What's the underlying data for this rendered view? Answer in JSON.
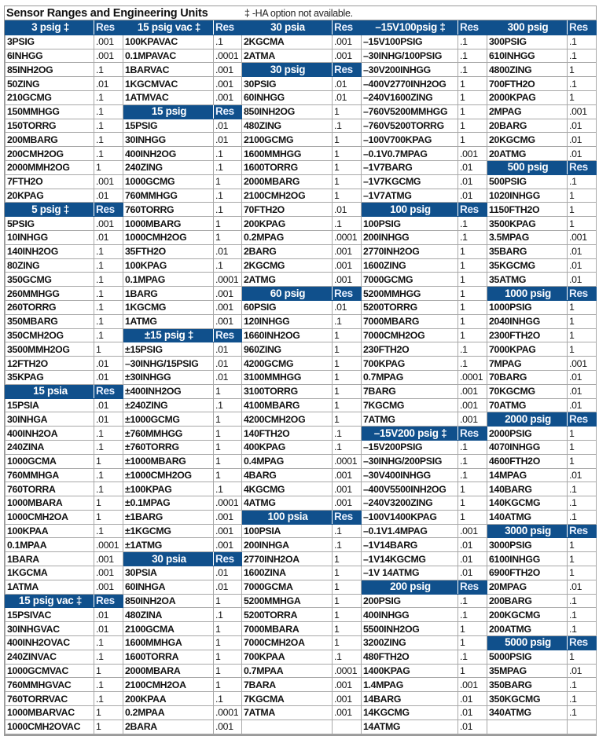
{
  "title": "Sensor Ranges and Engineering Units",
  "note": "‡ -HA option not available.",
  "colors": {
    "header_bg": "#10508c",
    "header_text": "#ffffff"
  },
  "columns": [
    [
      {
        "h": "3 psig ‡",
        "r": "Res"
      },
      [
        "3PSIG",
        ".001"
      ],
      [
        "6INHGG",
        ".001"
      ],
      [
        "85INH2OG",
        ".1"
      ],
      [
        "50ZING",
        ".01"
      ],
      [
        "210GCMG",
        ".1"
      ],
      [
        "150MMHGG",
        ".1"
      ],
      [
        "150TORRG",
        ".1"
      ],
      [
        "200MBARG",
        ".1"
      ],
      [
        "200CMH2OG",
        ".1"
      ],
      [
        "2000MMH2OG",
        "1"
      ],
      [
        "7FTH2O",
        ".001"
      ],
      [
        "20KPAG",
        ".01"
      ],
      {
        "h": "5 psig ‡",
        "r": "Res"
      },
      [
        "5PSIG",
        ".001"
      ],
      [
        "10INHGG",
        ".01"
      ],
      [
        "140INH2OG",
        ".1"
      ],
      [
        "80ZING",
        ".1"
      ],
      [
        "350GCMG",
        ".1"
      ],
      [
        "260MMHGG",
        ".1"
      ],
      [
        "260TORRG",
        ".1"
      ],
      [
        "350MBARG",
        ".1"
      ],
      [
        "350CMH2OG",
        ".1"
      ],
      [
        "3500MMH2OG",
        "1"
      ],
      [
        "12FTH2O",
        ".01"
      ],
      [
        "35KPAG",
        ".01"
      ],
      {
        "h": "15 psia",
        "r": "Res"
      },
      [
        "15PSIA",
        ".01"
      ],
      [
        "30INHGA",
        ".01"
      ],
      [
        "400INH2OA",
        ".1"
      ],
      [
        "240ZINA",
        ".1"
      ],
      [
        "1000GCMA",
        "1"
      ],
      [
        "760MMHGA",
        ".1"
      ],
      [
        "760TORRA",
        ".1"
      ],
      [
        "1000MBARA",
        "1"
      ],
      [
        "1000CMH2OA",
        "1"
      ],
      [
        "100KPAA",
        ".1"
      ],
      [
        "0.1MPAA",
        ".0001"
      ],
      [
        "1BARA",
        ".001"
      ],
      [
        "1KGCMA",
        ".001"
      ],
      [
        "1ATMA",
        ".001"
      ],
      {
        "h": "15 psig vac ‡",
        "r": "Res"
      },
      [
        "15PSIVAC",
        ".01"
      ],
      [
        "30INHGVAC",
        ".01"
      ],
      [
        "400INH2OVAC",
        ".1"
      ],
      [
        "240ZINVAC",
        ".1"
      ],
      [
        "1000GCMVAC",
        "1"
      ],
      [
        "760MMHGVAC",
        ".1"
      ],
      [
        "760TORRVAC",
        ".1"
      ],
      [
        "1000MBARVAC",
        "1"
      ],
      [
        "1000CMH2OVAC",
        "1"
      ]
    ],
    [
      {
        "h": "15 psig vac ‡",
        "r": "Res"
      },
      [
        "100KPAVAC",
        ".1"
      ],
      [
        "0.1MPAVAC",
        ".0001"
      ],
      [
        "1BARVAC",
        ".001"
      ],
      [
        "1KGCMVAC",
        ".001"
      ],
      [
        "1ATMVAC",
        ".001"
      ],
      {
        "h": "15 psig",
        "r": "Res"
      },
      [
        "15PSIG",
        ".01"
      ],
      [
        "30INHGG",
        ".01"
      ],
      [
        "400INH2OG",
        ".1"
      ],
      [
        "240ZING",
        ".1"
      ],
      [
        "1000GCMG",
        "1"
      ],
      [
        "760MMHGG",
        ".1"
      ],
      [
        "760TORRG",
        ".1"
      ],
      [
        "1000MBARG",
        "1"
      ],
      [
        "1000CMH2OG",
        "1"
      ],
      [
        "35FTH2O",
        ".01"
      ],
      [
        "100KPAG",
        ".1"
      ],
      [
        "0.1MPAG",
        ".0001"
      ],
      [
        "1BARG",
        ".001"
      ],
      [
        "1KGCMG",
        ".001"
      ],
      [
        "1ATMG",
        ".001"
      ],
      {
        "h": "±15 psig ‡",
        "r": "Res"
      },
      [
        "±15PSIG",
        ".01"
      ],
      [
        "–30INHG/15PSIG",
        ".01"
      ],
      [
        "±30INHGG",
        ".01"
      ],
      [
        "±400INH2OG",
        "1"
      ],
      [
        "±240ZING",
        ".1"
      ],
      [
        "±1000GCMG",
        "1"
      ],
      [
        "±760MMHGG",
        "1"
      ],
      [
        "±760TORRG",
        "1"
      ],
      [
        "±1000MBARG",
        "1"
      ],
      [
        "±1000CMH2OG",
        "1"
      ],
      [
        "±100KPAG",
        ".1"
      ],
      [
        "±0.1MPAG",
        ".0001"
      ],
      [
        "±1BARG",
        ".001"
      ],
      [
        "±1KGCMG",
        ".001"
      ],
      [
        "±1ATMG",
        ".001"
      ],
      {
        "h": "30 psia",
        "r": "Res"
      },
      [
        "30PSIA",
        ".01"
      ],
      [
        "60INHGA",
        ".01"
      ],
      [
        "850INH2OA",
        "1"
      ],
      [
        "480ZINA",
        ".1"
      ],
      [
        "2100GCMA",
        "1"
      ],
      [
        "1600MMHGA",
        "1"
      ],
      [
        "1600TORRA",
        "1"
      ],
      [
        "2000MBARA",
        "1"
      ],
      [
        "2100CMH2OA",
        "1"
      ],
      [
        "200KPAA",
        ".1"
      ],
      [
        "0.2MPAA",
        ".0001"
      ],
      [
        "2BARA",
        ".001"
      ]
    ],
    [
      {
        "h": "30 psia",
        "r": "Res"
      },
      [
        "2KGCMA",
        ".001"
      ],
      [
        "2ATMA",
        ".001"
      ],
      {
        "h": "30 psig",
        "r": "Res"
      },
      [
        "30PSIG",
        ".01"
      ],
      [
        "60INHGG",
        ".01"
      ],
      [
        "850INH2OG",
        "1"
      ],
      [
        "480ZING",
        ".1"
      ],
      [
        "2100GCMG",
        "1"
      ],
      [
        "1600MMHGG",
        "1"
      ],
      [
        "1600TORRG",
        "1"
      ],
      [
        "2000MBARG",
        "1"
      ],
      [
        "2100CMH2OG",
        "1"
      ],
      [
        "70FTH2O",
        ".01"
      ],
      [
        "200KPAG",
        ".1"
      ],
      [
        "0.2MPAG",
        ".0001"
      ],
      [
        "2BARG",
        ".001"
      ],
      [
        "2KGCMG",
        ".001"
      ],
      [
        "2ATMG",
        ".001"
      ],
      {
        "h": "60 psig",
        "r": "Res"
      },
      [
        "60PSIG",
        ".01"
      ],
      [
        "120INHGG",
        ".1"
      ],
      [
        "1660INH2OG",
        "1"
      ],
      [
        "960ZING",
        "1"
      ],
      [
        "4200GCMG",
        "1"
      ],
      [
        "3100MMHGG",
        "1"
      ],
      [
        "3100TORRG",
        "1"
      ],
      [
        "4100MBARG",
        "1"
      ],
      [
        "4200CMH2OG",
        "1"
      ],
      [
        "140FTH2O",
        ".1"
      ],
      [
        "400KPAG",
        ".1"
      ],
      [
        "0.4MPAG",
        ".0001"
      ],
      [
        "4BARG",
        ".001"
      ],
      [
        "4KGCMG",
        ".001"
      ],
      [
        "4ATMG",
        ".001"
      ],
      {
        "h": "100 psia",
        "r": "Res"
      },
      [
        "100PSIA",
        ".1"
      ],
      [
        "200INHGA",
        ".1"
      ],
      [
        "2770INH2OA",
        "1"
      ],
      [
        "1600ZINA",
        "1"
      ],
      [
        "7000GCMA",
        "1"
      ],
      [
        "5200MMHGA",
        "1"
      ],
      [
        "5200TORRA",
        "1"
      ],
      [
        "7000MBARA",
        "1"
      ],
      [
        "7000CMH2OA",
        "1"
      ],
      [
        "700KPAA",
        ".1"
      ],
      [
        "0.7MPAA",
        ".0001"
      ],
      [
        "7BARA",
        ".001"
      ],
      [
        "7KGCMA",
        ".001"
      ],
      [
        "7ATMA",
        ".001"
      ],
      [
        "",
        ""
      ]
    ],
    [
      {
        "h": "–15V100psig ‡",
        "r": "Res"
      },
      [
        "–15V100PSIG",
        ".1"
      ],
      [
        "–30INHG/100PSIG",
        ".1"
      ],
      [
        "–30V200INHGG",
        ".1"
      ],
      [
        "–400V2770INH2OG",
        "1"
      ],
      [
        "–240V1600ZING",
        "1"
      ],
      [
        "–760V5200MMHGG",
        "1"
      ],
      [
        "–760V5200TORRG",
        "1"
      ],
      [
        "–100V700KPAG",
        "1"
      ],
      [
        "–0.1V0.7MPAG",
        ".001"
      ],
      [
        "–1V7BARG",
        ".01"
      ],
      [
        "–1V7KGCMG",
        ".01"
      ],
      [
        "–1V7ATMG",
        ".01"
      ],
      {
        "h": "100 psig",
        "r": "Res"
      },
      [
        "100PSIG",
        ".1"
      ],
      [
        "200INHGG",
        ".1"
      ],
      [
        "2770INH2OG",
        "1"
      ],
      [
        "1600ZING",
        "1"
      ],
      [
        "7000GCMG",
        "1"
      ],
      [
        "5200MMHGG",
        "1"
      ],
      [
        "5200TORRG",
        "1"
      ],
      [
        "7000MBARG",
        "1"
      ],
      [
        "7000CMH2OG",
        "1"
      ],
      [
        "230FTH2O",
        ".1"
      ],
      [
        "700KPAG",
        ".1"
      ],
      [
        "0.7MPAG",
        ".0001"
      ],
      [
        "7BARG",
        ".001"
      ],
      [
        "7KGCMG",
        ".001"
      ],
      [
        "7ATMG",
        ".001"
      ],
      {
        "h": "–15V200 psig ‡",
        "r": "Res"
      },
      [
        "–15V200PSIG",
        ".1"
      ],
      [
        "–30INHG/200PSIG",
        ".1"
      ],
      [
        "–30V400INHGG",
        ".1"
      ],
      [
        "–400V5500INH2OG",
        "1"
      ],
      [
        "–240V3200ZING",
        "1"
      ],
      [
        "–100V1400KPAG",
        "1"
      ],
      [
        "–0.1V1.4MPAG",
        ".001"
      ],
      [
        "–1V14BARG",
        ".01"
      ],
      [
        "–1V14KGCMG",
        ".01"
      ],
      [
        "–1V 14ATMG",
        ".01"
      ],
      {
        "h": "200 psig",
        "r": "Res"
      },
      [
        "200PSIG",
        ".1"
      ],
      [
        "400INHGG",
        ".1"
      ],
      [
        "5500INH2OG",
        "1"
      ],
      [
        "3200ZING",
        "1"
      ],
      [
        "480FTH2O",
        ".1"
      ],
      [
        "1400KPAG",
        "1"
      ],
      [
        "1.4MPAG",
        ".001"
      ],
      [
        "14BARG",
        ".01"
      ],
      [
        "14KGCMG",
        ".01"
      ],
      [
        "14ATMG",
        ".01"
      ]
    ],
    [
      {
        "h": "300 psig",
        "r": "Res"
      },
      [
        "300PSIG",
        ".1"
      ],
      [
        "610INHGG",
        ".1"
      ],
      [
        "4800ZING",
        "1"
      ],
      [
        "700FTH2O",
        ".1"
      ],
      [
        "2000KPAG",
        "1"
      ],
      [
        "2MPAG",
        ".001"
      ],
      [
        "20BARG",
        ".01"
      ],
      [
        "20KGCMG",
        ".01"
      ],
      [
        "20ATMG",
        ".01"
      ],
      {
        "h": "500 psig",
        "r": "Res"
      },
      [
        "500PSIG",
        ".1"
      ],
      [
        "1020INHGG",
        "1"
      ],
      [
        "1150FTH2O",
        "1"
      ],
      [
        "3500KPAG",
        "1"
      ],
      [
        "3.5MPAG",
        ".001"
      ],
      [
        "35BARG",
        ".01"
      ],
      [
        "35KGCMG",
        ".01"
      ],
      [
        "35ATMG",
        ".01"
      ],
      {
        "h": "1000 psig",
        "r": "Res"
      },
      [
        "1000PSIG",
        "1"
      ],
      [
        "2040INHGG",
        "1"
      ],
      [
        "2300FTH2O",
        "1"
      ],
      [
        "7000KPAG",
        "1"
      ],
      [
        "7MPAG",
        ".001"
      ],
      [
        "70BARG",
        ".01"
      ],
      [
        "70KGCMG",
        ".01"
      ],
      [
        "70ATMG",
        ".01"
      ],
      {
        "h": "2000 psig",
        "r": "Res"
      },
      [
        "2000PSIG",
        "1"
      ],
      [
        "4070INHGG",
        "1"
      ],
      [
        "4600FTH2O",
        "1"
      ],
      [
        "14MPAG",
        ".01"
      ],
      [
        "140BARG",
        ".1"
      ],
      [
        "140KGCMG",
        ".1"
      ],
      [
        "140ATMG",
        ".1"
      ],
      {
        "h": "3000 psig",
        "r": "Res"
      },
      [
        "3000PSIG",
        "1"
      ],
      [
        "6100INHGG",
        "1"
      ],
      [
        "6900FTH2O",
        "1"
      ],
      [
        "20MPAG",
        ".01"
      ],
      [
        "200BARG",
        ".1"
      ],
      [
        "200KGCMG",
        ".1"
      ],
      [
        "200ATMG",
        ".1"
      ],
      {
        "h": "5000 psig",
        "r": "Res"
      },
      [
        "5000PSIG",
        "1"
      ],
      [
        "35MPAG",
        ".01"
      ],
      [
        "350BARG",
        ".1"
      ],
      [
        "350KGCMG",
        ".1"
      ],
      [
        "340ATMG",
        ".1"
      ],
      [
        "",
        ""
      ]
    ]
  ]
}
